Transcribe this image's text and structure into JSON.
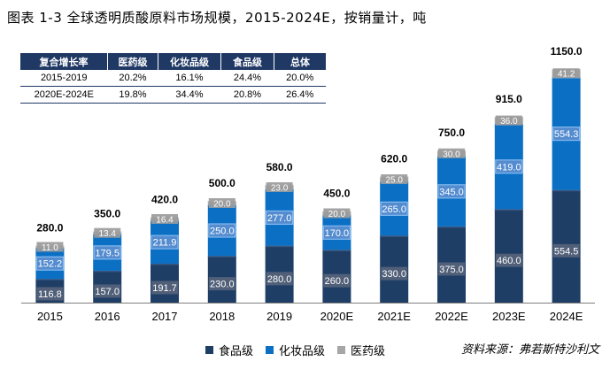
{
  "title": "图表 1-3 全球透明质酸原料市场规模，2015-2024E，按销量计，吨",
  "table": {
    "headers": [
      "复合增长率",
      "医药级",
      "化妆品级",
      "食品级",
      "总体"
    ],
    "rows": [
      [
        "2015-2019",
        "20.2%",
        "16.1%",
        "24.4%",
        "20.0%"
      ],
      [
        "2020E-2024E",
        "19.8%",
        "34.4%",
        "20.8%",
        "26.4%"
      ]
    ]
  },
  "chart_data": {
    "type": "bar",
    "stacked": true,
    "categories": [
      "2015",
      "2016",
      "2017",
      "2018",
      "2019",
      "2020E",
      "2021E",
      "2022E",
      "2023E",
      "2024E"
    ],
    "series": [
      {
        "name": "食品级",
        "color": "#1f3e66",
        "values": [
          116.8,
          157.0,
          191.7,
          230.0,
          280.0,
          260.0,
          330.0,
          375.0,
          460.0,
          554.5
        ]
      },
      {
        "name": "化妆品级",
        "color": "#0b6fc4",
        "values": [
          152.2,
          179.5,
          211.9,
          250.0,
          277.0,
          170.0,
          265.0,
          345.0,
          419.0,
          554.3
        ]
      },
      {
        "name": "医药级",
        "color": "#a6a6a6",
        "values": [
          11.0,
          13.4,
          16.4,
          20.0,
          23.0,
          20.0,
          25.0,
          30.0,
          36.0,
          41.2
        ]
      }
    ],
    "value_labels": [
      [
        "116.8",
        "157.0",
        "191.7",
        "230.0",
        "280.0",
        "260.0",
        "330.0",
        "375.0",
        "460.0",
        "554.5"
      ],
      [
        "152.2",
        "179.5",
        "211.9",
        "250.0",
        "277.0",
        "170.0",
        "265.0",
        "345.0",
        "419.0",
        "554.3"
      ],
      [
        "11.0",
        "13.4",
        "16.4",
        "20.0",
        "23.0",
        "20.0",
        "25.0",
        "30.0",
        "36.0",
        "41.2"
      ]
    ],
    "totals": [
      "280.0",
      "350.0",
      "420.0",
      "500.0",
      "580.0",
      "450.0",
      "620.0",
      "750.0",
      "915.0",
      "1150.0"
    ],
    "ylim": [
      0,
      1150
    ],
    "grid": false,
    "legend_position": "bottom"
  },
  "legend": {
    "items": [
      {
        "label": "食品级",
        "color": "#1f3e66"
      },
      {
        "label": "化妆品级",
        "color": "#0b6fc4"
      },
      {
        "label": "医药级",
        "color": "#a6a6a6"
      }
    ]
  },
  "source": "资料来源：弗若斯特沙利文"
}
